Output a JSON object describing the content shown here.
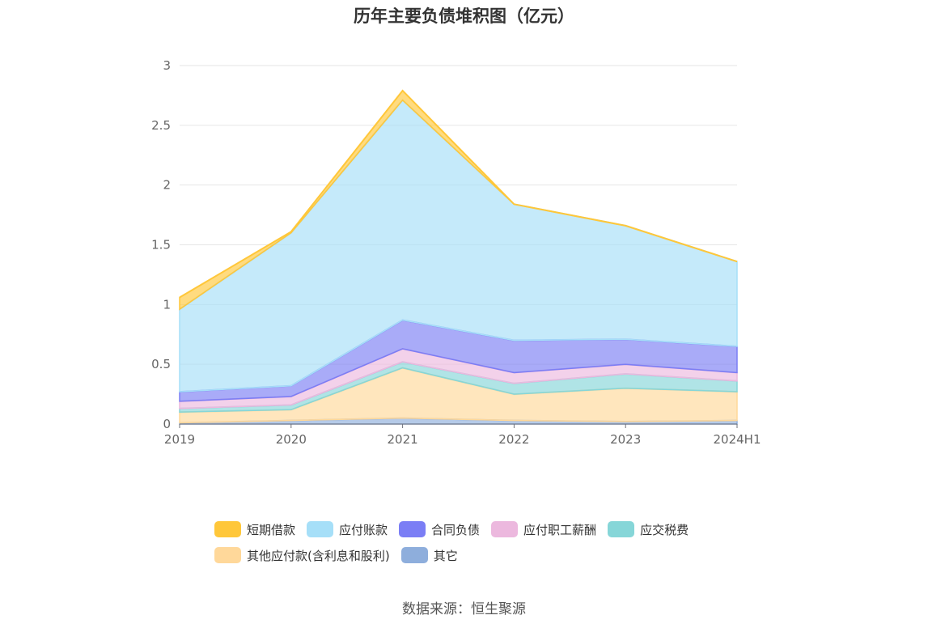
{
  "title": "历年主要负债堆积图（亿元）",
  "source": "数据来源：恒生聚源",
  "chart_data": {
    "type": "area",
    "stacked": true,
    "categories": [
      "2019",
      "2020",
      "2021",
      "2022",
      "2023",
      "2024H1"
    ],
    "ylim": [
      0,
      3
    ],
    "yticks": [
      "0",
      "0.5",
      "1",
      "1.5",
      "2",
      "2.5",
      "3"
    ],
    "grid": true,
    "legend_position": "bottom",
    "series": [
      {
        "name": "其它",
        "color": "#8eaedc",
        "values": [
          0.01,
          0.03,
          0.05,
          0.03,
          0.02,
          0.03
        ]
      },
      {
        "name": "其他应付款(含利息和股利)",
        "color": "#ffd89a",
        "values": [
          0.09,
          0.09,
          0.42,
          0.22,
          0.28,
          0.24
        ]
      },
      {
        "name": "应交税费",
        "color": "#86d6d8",
        "values": [
          0.03,
          0.04,
          0.05,
          0.09,
          0.12,
          0.09
        ]
      },
      {
        "name": "应付职工薪酬",
        "color": "#ecb8de",
        "values": [
          0.06,
          0.07,
          0.11,
          0.09,
          0.08,
          0.07
        ]
      },
      {
        "name": "合同负债",
        "color": "#7b7ef5",
        "values": [
          0.08,
          0.09,
          0.24,
          0.27,
          0.21,
          0.22
        ]
      },
      {
        "name": "应付账款",
        "color": "#a6dff8",
        "values": [
          0.69,
          1.28,
          1.84,
          1.14,
          0.95,
          0.71
        ]
      },
      {
        "name": "短期借款",
        "color": "#ffc73a",
        "values": [
          0.1,
          0.01,
          0.08,
          0.0,
          0.0,
          0.0
        ]
      }
    ],
    "legend_order": [
      "短期借款",
      "应付账款",
      "合同负债",
      "应付职工薪酬",
      "应交税费",
      "其他应付款(含利息和股利)",
      "其它"
    ]
  }
}
